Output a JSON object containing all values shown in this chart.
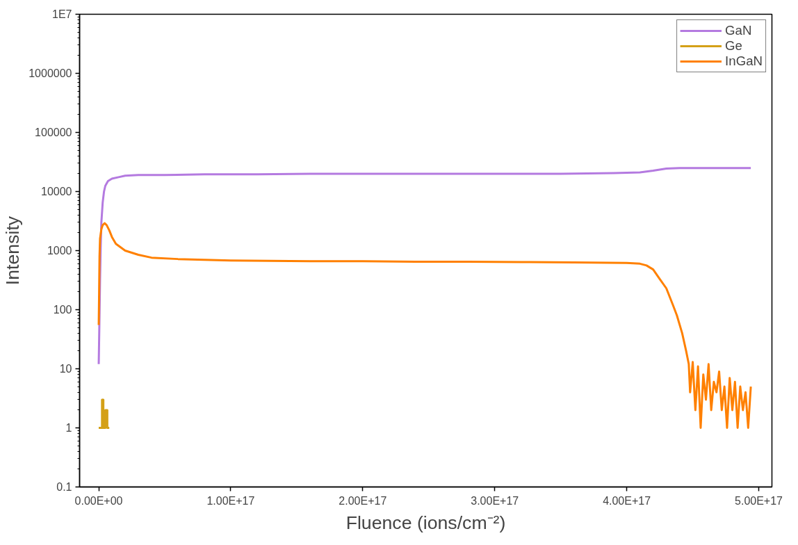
{
  "chart_data": {
    "type": "line",
    "xlabel": "Fluence (ions/cm⁻²)",
    "ylabel": "Intensity",
    "log": "y",
    "grid": false,
    "legend": "top right",
    "line_style": "solid",
    "marker": "none",
    "xlim": [
      -1.45e+16,
      5.1e+17
    ],
    "ylim": [
      0.1,
      10000000
    ],
    "xticks": [
      {
        "value": 0,
        "label": "0.00E+00"
      },
      {
        "value": 1e+17,
        "label": "1.00E+17"
      },
      {
        "value": 2e+17,
        "label": "2.00E+17"
      },
      {
        "value": 3e+17,
        "label": "3.00E+17"
      },
      {
        "value": 4e+17,
        "label": "4.00E+17"
      },
      {
        "value": 5e+17,
        "label": "5.00E+17"
      }
    ],
    "yticks": [
      0.1,
      1,
      10,
      100,
      1000,
      10000,
      100000,
      1000000,
      {
        "value": 10000000,
        "label": "1E7"
      }
    ],
    "series": [
      {
        "name": "GaN",
        "color": "#b47ae0",
        "x": [
          0,
          500000000000000.0,
          1000000000000000.0,
          1500000000000000.0,
          2000000000000000.0,
          3000000000000000.0,
          4000000000000000.0,
          5000000000000000.0,
          7000000000000000.0,
          1e+16,
          1.5e+16,
          2e+16,
          3e+16,
          5e+16,
          8e+16,
          1.2e+17,
          1.6e+17,
          2e+17,
          2.5e+17,
          3e+17,
          3.5e+17,
          3.9e+17,
          4.1e+17,
          4.2e+17,
          4.3e+17,
          4.4e+17,
          4.6e+17,
          4.8e+17,
          4.94e+17
        ],
        "values": [
          12,
          60,
          330,
          1200,
          3000,
          6500,
          10000,
          12500,
          15000,
          16500,
          17500,
          18500,
          19000,
          19000,
          19500,
          19500,
          20000,
          20000,
          20000,
          20000,
          20000,
          20500,
          21000,
          22500,
          24500,
          25000,
          25000,
          25000,
          25000
        ]
      },
      {
        "name": "Ge",
        "color": "#d4a017",
        "x": [
          0,
          1500000000000000.0,
          2500000000000000.0,
          2500000000000000.0,
          3500000000000000.0,
          3500000000000000.0,
          5000000000000000.0,
          5000000000000000.0,
          6500000000000000.0,
          6500000000000000.0,
          8000000000000000.0
        ],
        "values": [
          1,
          1,
          1,
          3,
          3,
          1,
          1,
          2,
          2,
          1,
          1
        ]
      },
      {
        "name": "InGaN",
        "color": "#ff8000",
        "x": [
          0,
          300000000000000.0,
          600000000000000.0,
          1000000000000000.0,
          2000000000000000.0,
          3000000000000000.0,
          4500000000000000.0,
          6000000000000000.0,
          8000000000000000.0,
          1e+16,
          1.3e+16,
          2e+16,
          3e+16,
          4e+16,
          6e+16,
          8e+16,
          1e+17,
          1.3e+17,
          1.6e+17,
          2e+17,
          2.4e+17,
          2.8e+17,
          3.2e+17,
          3.6e+17,
          4e+17,
          4.1e+17,
          4.15e+17,
          4.2e+17,
          4.25e+17,
          4.3e+17,
          4.35e+17,
          4.38e+17,
          4.42e+17,
          4.45e+17,
          4.47e+17,
          4.48e+17,
          4.5e+17,
          4.52e+17,
          4.54e+17,
          4.56e+17,
          4.58e+17,
          4.6e+17,
          4.62e+17,
          4.64e+17,
          4.66e+17,
          4.68e+17,
          4.7e+17,
          4.72e+17,
          4.74e+17,
          4.76e+17,
          4.78e+17,
          4.8e+17,
          4.82e+17,
          4.84e+17,
          4.86e+17,
          4.88e+17,
          4.9e+17,
          4.92e+17,
          4.94e+17
        ],
        "values": [
          55,
          200,
          800,
          1600,
          2300,
          2700,
          2900,
          2700,
          2200,
          1700,
          1300,
          1000,
          850,
          760,
          720,
          700,
          680,
          670,
          660,
          660,
          650,
          650,
          640,
          630,
          620,
          600,
          560,
          480,
          330,
          230,
          120,
          80,
          40,
          20,
          12,
          4,
          13,
          2,
          11,
          1,
          8,
          3,
          12,
          2,
          6,
          4,
          9,
          2,
          5,
          1,
          7,
          2,
          6,
          1,
          5,
          2,
          4,
          1,
          5
        ]
      }
    ]
  }
}
